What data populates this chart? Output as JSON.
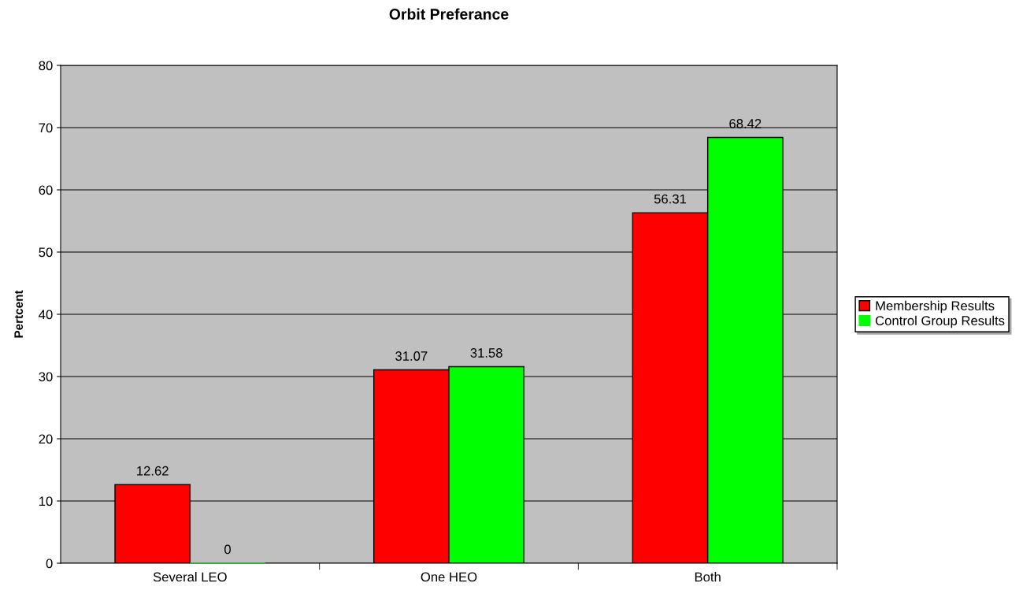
{
  "chart_data": {
    "type": "bar",
    "title": "Orbit Preferance",
    "ylabel": "Pertcent",
    "categories": [
      "Several LEO",
      "One HEO",
      "Both"
    ],
    "series": [
      {
        "name": "Membership Results",
        "color": "#ff0000",
        "values": [
          12.62,
          31.07,
          56.31
        ]
      },
      {
        "name": "Control Group Results",
        "color": "#00ff00",
        "values": [
          0,
          31.58,
          68.42
        ]
      }
    ],
    "ylim": [
      0,
      80
    ],
    "yticks": [
      0,
      10,
      20,
      30,
      40,
      50,
      60,
      70,
      80
    ],
    "grid": "y",
    "legend": "right",
    "data_labels": true
  }
}
